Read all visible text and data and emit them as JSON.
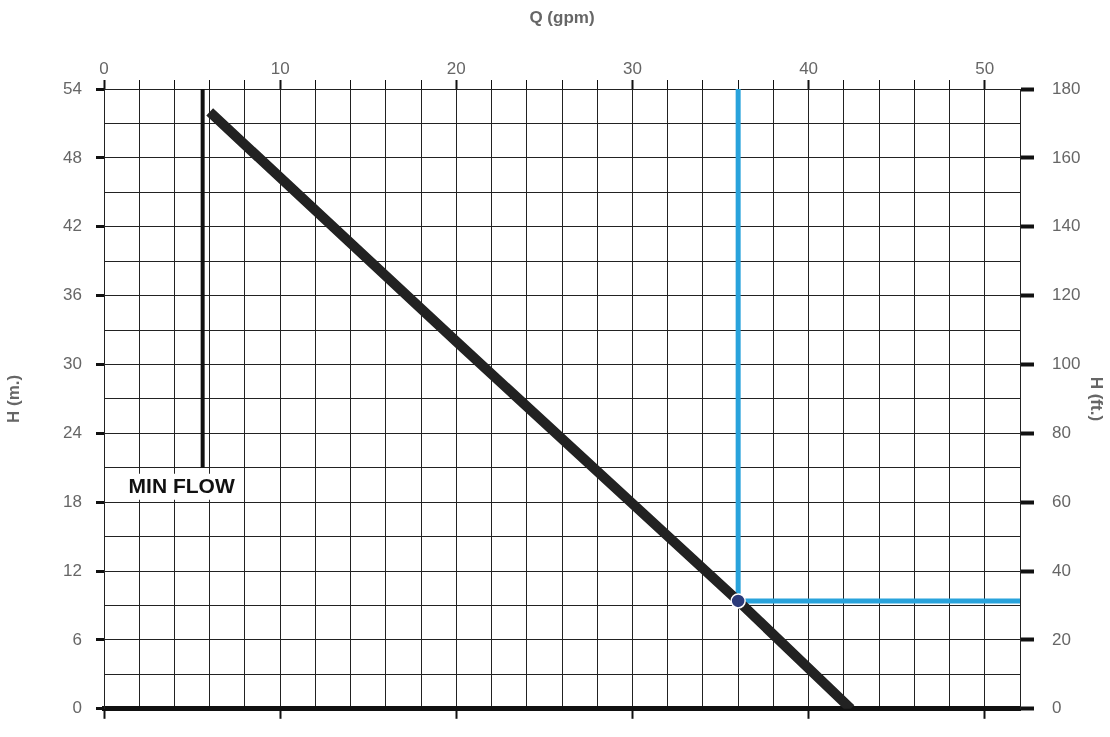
{
  "chart_data": {
    "type": "line",
    "xlabel": "Q (gpm)",
    "ylabel": "H (m.)",
    "y2label": "H (ft.)",
    "xlim": [
      0,
      52
    ],
    "xticks": [
      0,
      {
        "value": 2,
        "label": null
      },
      {
        "value": 4,
        "label": null
      },
      {
        "value": 6,
        "label": null
      },
      {
        "value": 8,
        "label": null
      },
      10,
      {
        "value": 12,
        "label": null
      },
      {
        "value": 14,
        "label": null
      },
      {
        "value": 16,
        "label": null
      },
      {
        "value": 18,
        "label": null
      },
      20,
      {
        "value": 22,
        "label": null
      },
      {
        "value": 24,
        "label": null
      },
      {
        "value": 26,
        "label": null
      },
      {
        "value": 28,
        "label": null
      },
      30,
      {
        "value": 32,
        "label": null
      },
      {
        "value": 34,
        "label": null
      },
      {
        "value": 36,
        "label": null
      },
      {
        "value": 38,
        "label": null
      },
      40,
      {
        "value": 42,
        "label": null
      },
      {
        "value": 44,
        "label": null
      },
      {
        "value": 46,
        "label": null
      },
      {
        "value": 48,
        "label": null
      },
      50
    ],
    "ylim": [
      0,
      54
    ],
    "yticks": [
      0,
      {
        "value": 3,
        "label": null
      },
      6,
      {
        "value": 9,
        "label": null
      },
      12,
      {
        "value": 15,
        "label": null
      },
      18,
      {
        "value": 21,
        "label": null
      },
      24,
      {
        "value": 27,
        "label": null
      },
      30,
      {
        "value": 33,
        "label": null
      },
      36,
      {
        "value": 39,
        "label": null
      },
      42,
      {
        "value": 45,
        "label": null
      },
      48,
      {
        "value": 51,
        "label": null
      },
      54
    ],
    "y2lim": [
      0,
      180
    ],
    "y2ticks": [
      0,
      20,
      40,
      60,
      80,
      100,
      120,
      140,
      160,
      180
    ],
    "grid": true,
    "legend": false,
    "series": [
      {
        "type": "line",
        "color": "#222222",
        "x": [
          6,
          20,
          36,
          42.4
        ],
        "values": [
          52,
          32,
          9.4,
          0
        ]
      },
      {
        "type": "line",
        "color": "#111111",
        "x": [
          5.6,
          5.6
        ],
        "values": [
          21,
          54
        ]
      },
      {
        "type": "line",
        "color": "#29a3dc",
        "x": [
          36,
          36,
          52
        ],
        "values": [
          54,
          9.4,
          9.4
        ]
      },
      {
        "type": "scatter",
        "color": "#2b3a7a",
        "marker": "circle",
        "x": [
          36
        ],
        "values": [
          9.4
        ]
      }
    ],
    "annotations": [
      {
        "text": "MIN FLOW",
        "x": 5.6,
        "y": 21
      }
    ]
  }
}
